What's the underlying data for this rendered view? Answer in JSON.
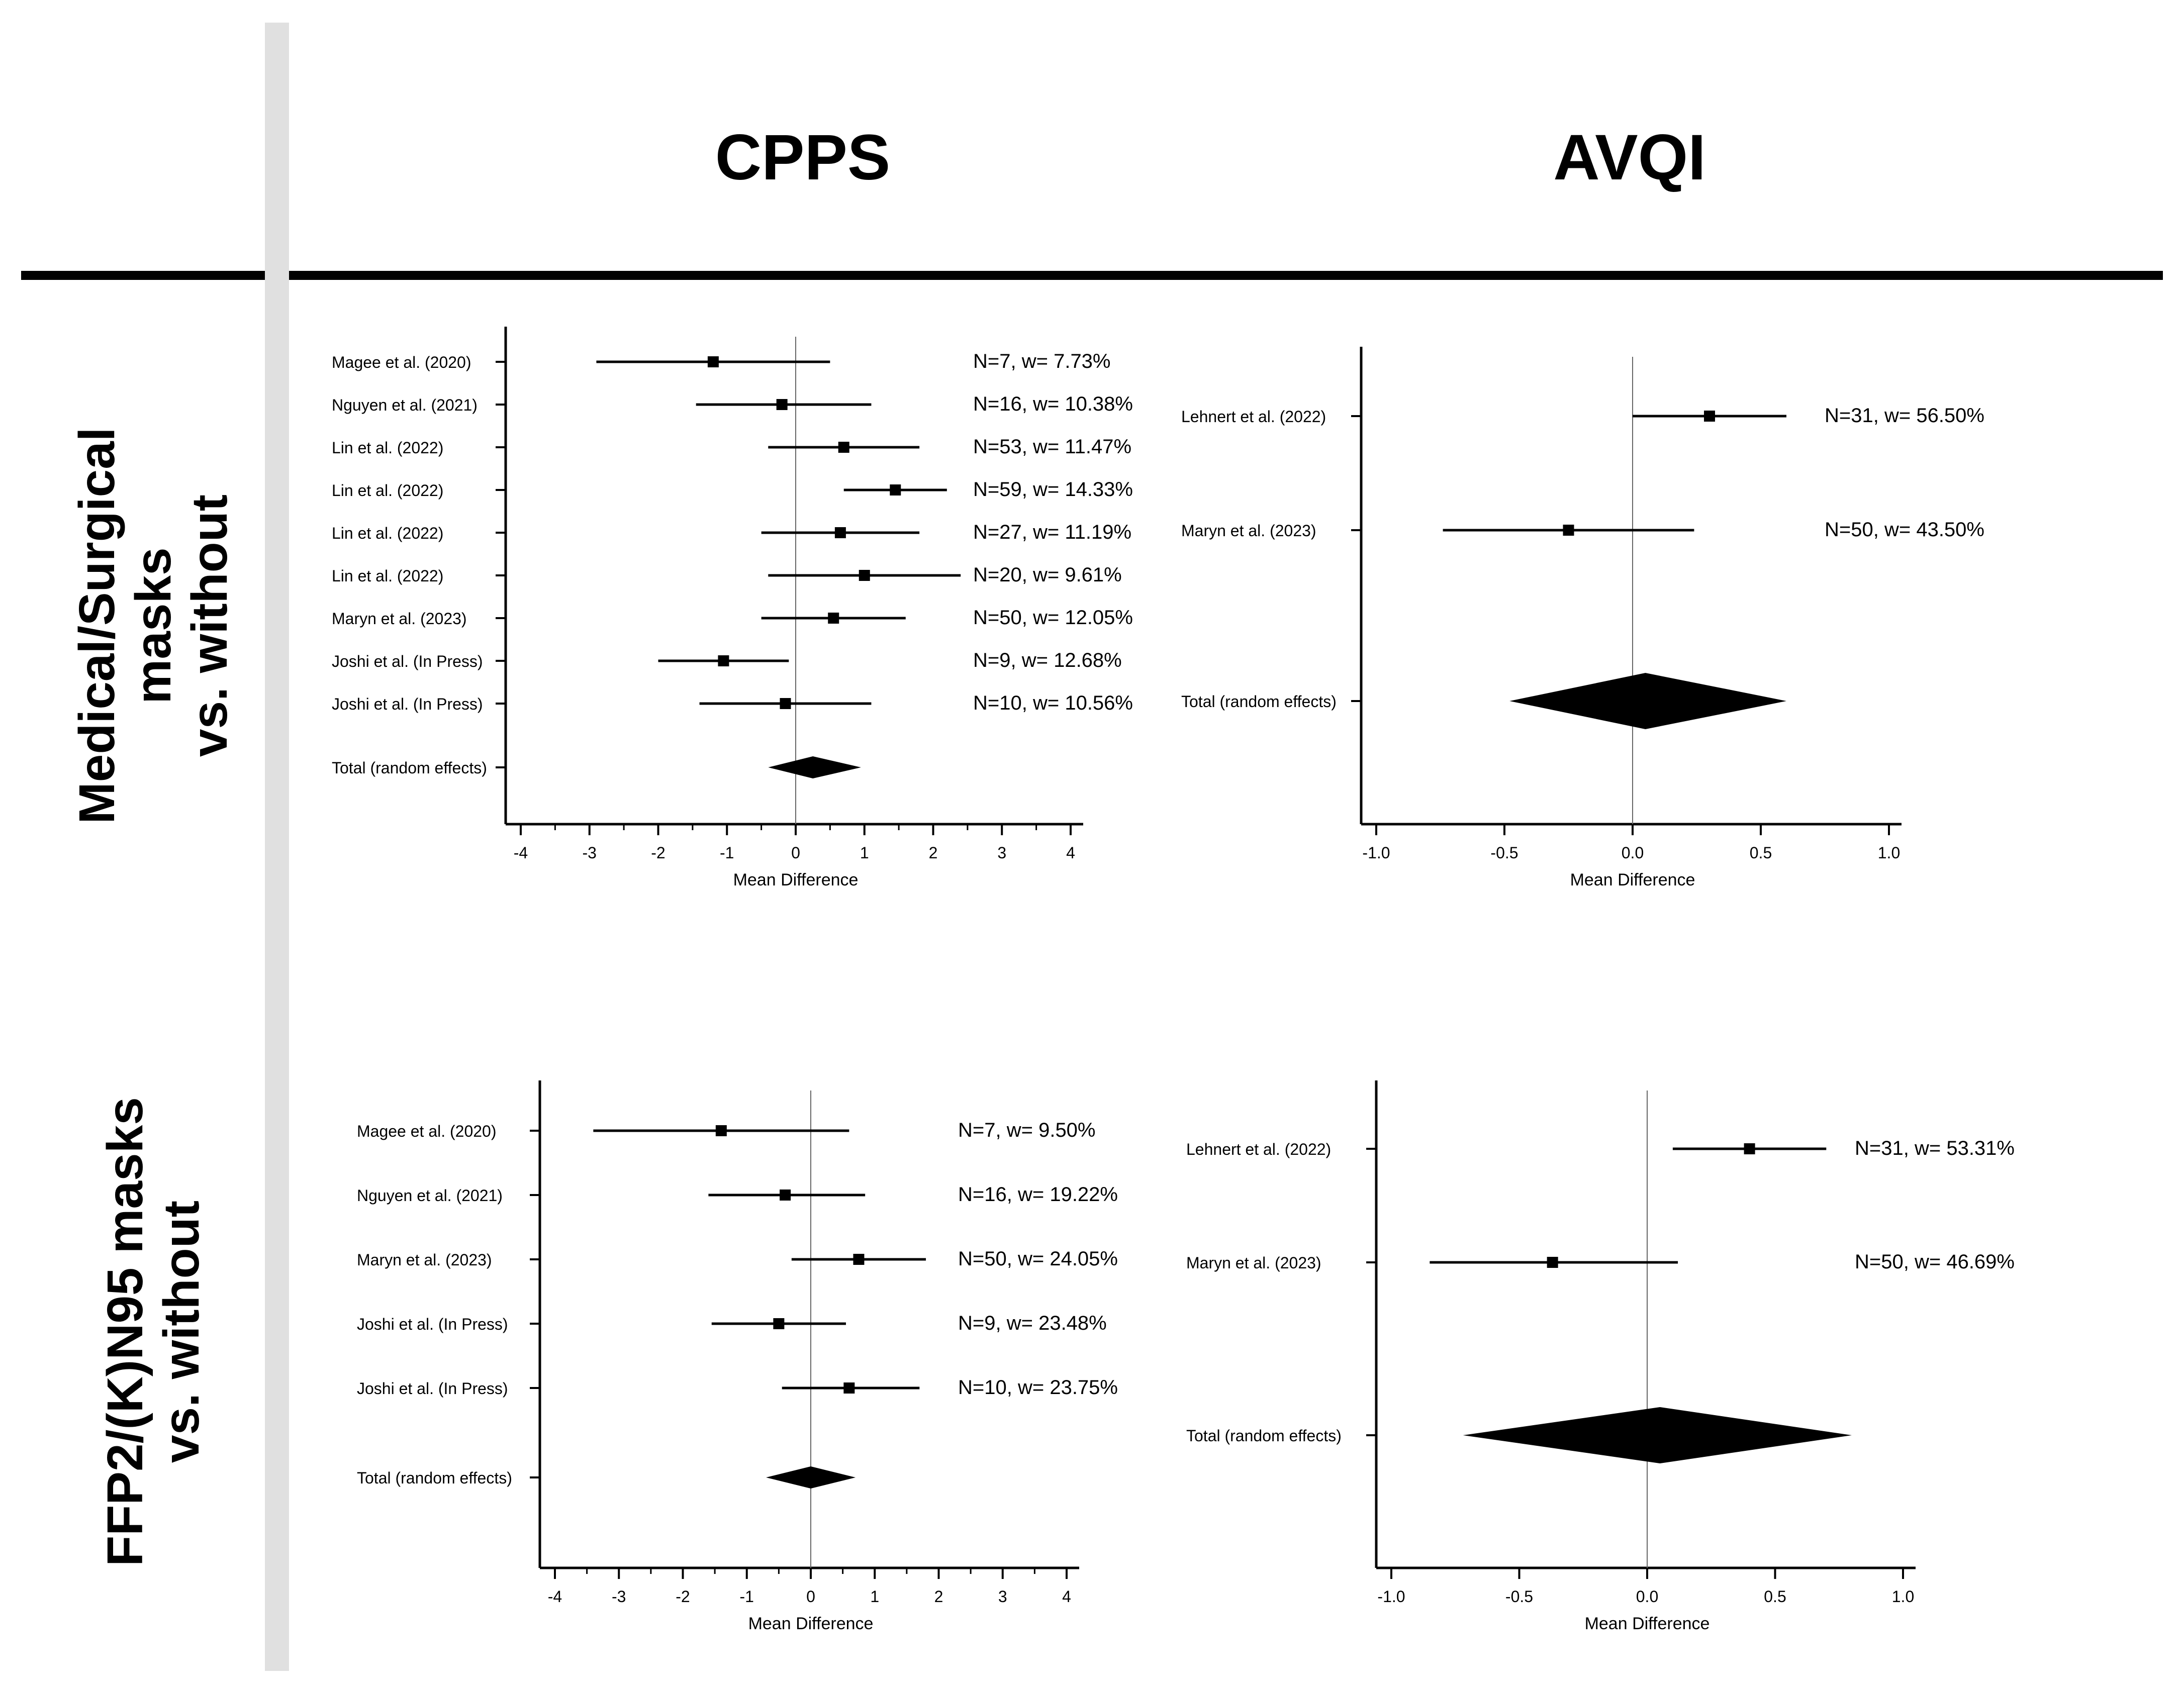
{
  "columns": {
    "cpps": "CPPS",
    "avqi": "AVQI"
  },
  "rows": {
    "medical": [
      "Medical/Surgical masks",
      "vs. without"
    ],
    "ffp2": [
      "FFP2/(K)N95 masks",
      "vs. without"
    ]
  },
  "chart_data": [
    {
      "type": "forest",
      "title": "CPPS",
      "group": "Medical/Surgical masks vs. without",
      "xlabel": "Mean Difference",
      "xlim": [
        -4,
        4
      ],
      "xticks": [
        -4,
        -3,
        -2,
        -1,
        0,
        1,
        2,
        3,
        4
      ],
      "studies": [
        {
          "label": "Magee et al. (2020)",
          "est": -1.2,
          "lo": -2.9,
          "hi": 0.5,
          "ann": "N=7, w= 7.73%"
        },
        {
          "label": "Nguyen et al. (2021)",
          "est": -0.2,
          "lo": -1.45,
          "hi": 1.1,
          "ann": "N=16, w= 10.38%"
        },
        {
          "label": "Lin et al. (2022)",
          "est": 0.7,
          "lo": -0.4,
          "hi": 1.8,
          "ann": "N=53, w= 11.47%"
        },
        {
          "label": "Lin et al. (2022)",
          "est": 1.45,
          "lo": 0.7,
          "hi": 2.2,
          "ann": "N=59, w= 14.33%"
        },
        {
          "label": "Lin et al. (2022)",
          "est": 0.65,
          "lo": -0.5,
          "hi": 1.8,
          "ann": "N=27, w= 11.19%"
        },
        {
          "label": "Lin et al. (2022)",
          "est": 1.0,
          "lo": -0.4,
          "hi": 2.4,
          "ann": "N=20, w= 9.61%"
        },
        {
          "label": "Maryn et al. (2023)",
          "est": 0.55,
          "lo": -0.5,
          "hi": 1.6,
          "ann": "N=50, w= 12.05%"
        },
        {
          "label": "Joshi et al. (In Press)",
          "est": -1.05,
          "lo": -2.0,
          "hi": -0.1,
          "ann": "N=9, w= 12.68%"
        },
        {
          "label": "Joshi et al. (In Press)",
          "est": -0.15,
          "lo": -1.4,
          "hi": 1.1,
          "ann": "N=10, w= 10.56%"
        }
      ],
      "total": {
        "label": "Total (random effects)",
        "est": 0.25,
        "lo": -0.4,
        "hi": 0.95
      }
    },
    {
      "type": "forest",
      "title": "AVQI",
      "group": "Medical/Surgical masks vs. without",
      "xlabel": "Mean Difference",
      "xlim": [
        -1.0,
        1.0
      ],
      "xticks": [
        "-1.0",
        "-0.5",
        "0.0",
        "0.5",
        "1.0"
      ],
      "studies": [
        {
          "label": "Lehnert et al. (2022)",
          "est": 0.3,
          "lo": 0.0,
          "hi": 0.6,
          "ann": "N=31, w= 56.50%"
        },
        {
          "label": "Maryn et al. (2023)",
          "est": -0.25,
          "lo": -0.74,
          "hi": 0.24,
          "ann": "N=50, w= 43.50%"
        }
      ],
      "total": {
        "label": "Total (random effects)",
        "est": 0.05,
        "lo": -0.48,
        "hi": 0.6
      }
    },
    {
      "type": "forest",
      "title": "CPPS",
      "group": "FFP2/(K)N95 masks vs. without",
      "xlabel": "Mean Difference",
      "xlim": [
        -4,
        4
      ],
      "xticks": [
        -4,
        -3,
        -2,
        -1,
        0,
        1,
        2,
        3,
        4
      ],
      "studies": [
        {
          "label": "Magee et al. (2020)",
          "est": -1.4,
          "lo": -3.4,
          "hi": 0.6,
          "ann": "N=7, w= 9.50%"
        },
        {
          "label": "Nguyen et al. (2021)",
          "est": -0.4,
          "lo": -1.6,
          "hi": 0.85,
          "ann": "N=16, w= 19.22%"
        },
        {
          "label": "Maryn et al. (2023)",
          "est": 0.75,
          "lo": -0.3,
          "hi": 1.8,
          "ann": "N=50, w= 24.05%"
        },
        {
          "label": "Joshi et al. (In Press)",
          "est": -0.5,
          "lo": -1.55,
          "hi": 0.55,
          "ann": "N=9, w= 23.48%"
        },
        {
          "label": "Joshi et al. (In Press)",
          "est": 0.6,
          "lo": -0.45,
          "hi": 1.7,
          "ann": "N=10, w= 23.75%"
        }
      ],
      "total": {
        "label": "Total (random effects)",
        "est": 0.0,
        "lo": -0.7,
        "hi": 0.7
      }
    },
    {
      "type": "forest",
      "title": "AVQI",
      "group": "FFP2/(K)N95 masks vs. without",
      "xlabel": "Mean Difference",
      "xlim": [
        -1.0,
        1.0
      ],
      "xticks": [
        "-1.0",
        "-0.5",
        "0.0",
        "0.5",
        "1.0"
      ],
      "studies": [
        {
          "label": "Lehnert et al. (2022)",
          "est": 0.4,
          "lo": 0.1,
          "hi": 0.7,
          "ann": "N=31, w= 53.31%"
        },
        {
          "label": "Maryn et al. (2023)",
          "est": -0.37,
          "lo": -0.85,
          "hi": 0.12,
          "ann": "N=50, w= 46.69%"
        }
      ],
      "total": {
        "label": "Total (random effects)",
        "est": 0.05,
        "lo": -0.72,
        "hi": 0.8
      }
    }
  ]
}
